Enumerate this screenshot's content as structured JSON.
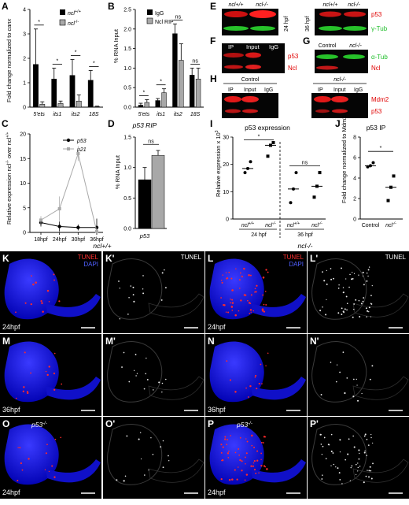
{
  "panels": {
    "A": {
      "label": "A",
      "ylabel_main": "Fold change normalized to ",
      "ylabel_italic": "canx",
      "legend": [
        "ncl",
        "+/+",
        "ncl",
        "-/-"
      ],
      "sig": [
        "*",
        "*",
        "*",
        "*"
      ],
      "chart_data": {
        "type": "bar",
        "categories": [
          "5'ets",
          "its1",
          "its2",
          "18S"
        ],
        "ylim": [
          0,
          4
        ],
        "yticks": [
          "0",
          "1",
          "2",
          "3",
          "4"
        ],
        "series": [
          {
            "name": "ncl+/+",
            "values": [
              1.75,
              1.15,
              1.3,
              1.1
            ],
            "err": [
              1.45,
              0.45,
              0.65,
              0.4
            ]
          },
          {
            "name": "ncl-/-",
            "values": [
              0.12,
              0.15,
              0.25,
              0.02
            ],
            "err": [
              0.1,
              0.1,
              0.25,
              0.02
            ]
          }
        ]
      }
    },
    "B": {
      "label": "B",
      "ylabel": "% RNA Input",
      "legend": [
        "IgG",
        "Ncl RIP"
      ],
      "sig": [
        "*",
        "*",
        "ns",
        "ns"
      ],
      "chart_data": {
        "type": "bar",
        "categories": [
          "5'ets",
          "its1",
          "its2",
          "18S"
        ],
        "ylim": [
          0,
          2.5
        ],
        "yticks": [
          "0.0",
          "0.5",
          "1.0",
          "1.5",
          "2.0",
          "2.5"
        ],
        "series": [
          {
            "name": "IgG",
            "values": [
              0.05,
              0.17,
              1.88,
              0.82
            ],
            "err": [
              0.05,
              0.05,
              0.25,
              0.18
            ]
          },
          {
            "name": "Ncl RIP",
            "values": [
              0.12,
              0.37,
              1.2,
              0.72
            ],
            "err": [
              0.07,
              0.1,
              0.42,
              0.28
            ]
          }
        ]
      }
    },
    "C": {
      "label": "C",
      "ylabel": "Relative expression ncl",
      "ylabel_sup": "-/-",
      "ylabel_mid": " over ncl",
      "ylabel_sup2": "+/+",
      "chart_data": {
        "type": "line",
        "x": [
          "18hpf",
          "24hpf",
          "30hpf",
          "36hpf"
        ],
        "ylim": [
          0,
          20
        ],
        "yticks": [
          "0",
          "5",
          "10",
          "15",
          "20"
        ],
        "series": [
          {
            "name": "p53",
            "values": [
              2.0,
              1.2,
              1.0,
              1.0
            ],
            "err": [
              0.8,
              1.0,
              0.6,
              1.8
            ]
          },
          {
            "name": "p21",
            "values": [
              2.5,
              4.8,
              16.0,
              0.2
            ],
            "err": [
              0.8,
              2.5,
              1.5,
              0.2
            ]
          }
        ]
      }
    },
    "D": {
      "label": "D",
      "title": "p53 RIP",
      "ylabel": "% RNA Input",
      "xlabel": "p53",
      "sig": "ns",
      "chart_data": {
        "type": "bar",
        "categories": [
          "p53"
        ],
        "ylim": [
          0,
          1.5
        ],
        "yticks": [
          "0.0",
          "0.5",
          "1.0",
          "1.5"
        ],
        "series": [
          {
            "name": "IgG",
            "values": [
              0.8
            ],
            "err": [
              0.2
            ]
          },
          {
            "name": "Ncl RIP",
            "values": [
              1.2
            ],
            "err": [
              0.08
            ]
          }
        ]
      }
    },
    "I": {
      "label": "I",
      "title": "p53 expression",
      "ylabel": "Relative expression x 10",
      "ylabel_sup": "3",
      "sig": [
        "*",
        "ns"
      ],
      "group_labels": [
        "24 hpf",
        "36 hpf"
      ],
      "tick_labels": [
        "ncl+/+",
        "ncl-/-",
        "ncl+/+",
        "ncl-/-"
      ],
      "chart_data": {
        "type": "scatter",
        "ylim": [
          0,
          30
        ],
        "yticks": [
          "0",
          "10",
          "20",
          "30"
        ],
        "groups": [
          {
            "name": "24 hpf ncl+/+",
            "points": [
              17,
              18.5,
              21
            ]
          },
          {
            "name": "24 hpf ncl-/-",
            "points": [
              23,
              27,
              28
            ]
          },
          {
            "name": "36 hpf ncl+/+",
            "points": [
              6,
              11,
              17
            ]
          },
          {
            "name": "36 hpf ncl-/-",
            "points": [
              8,
              12,
              17
            ]
          }
        ]
      }
    },
    "J": {
      "label": "J",
      "title": "p53 IP",
      "ylabel": "Fold change normalized to Mdm2",
      "sig": "*",
      "tick_labels": [
        "Control",
        "ncl-/-"
      ],
      "chart_data": {
        "type": "scatter",
        "ylim": [
          0,
          8
        ],
        "yticks": [
          "0",
          "2",
          "4",
          "6",
          "8"
        ],
        "groups": [
          {
            "name": "Control",
            "points": [
              5.1,
              5.2,
              5.5
            ]
          },
          {
            "name": "ncl-/-",
            "points": [
              1.8,
              3.1,
              4.2
            ]
          }
        ]
      }
    },
    "E": {
      "label": "E",
      "cols": [
        "ncl+/+",
        "ncl-/-"
      ],
      "time1": "24 hpf",
      "time2": "36 hpf",
      "bands": [
        "p53",
        "γ-Tub"
      ]
    },
    "F": {
      "label": "F",
      "lanes": [
        "IP",
        "Input",
        "IgG"
      ],
      "bands": [
        "p53",
        "Ncl"
      ]
    },
    "G": {
      "label": "G",
      "lanes": [
        "Control",
        "ncl-/-"
      ],
      "bands": [
        "α-Tub",
        "Ncl"
      ]
    },
    "H": {
      "label": "H",
      "group1": "Control",
      "group2": "ncl-/-",
      "lanes": [
        "IP",
        "Input",
        "IgG"
      ],
      "bands": [
        "Mdm2",
        "p53"
      ]
    },
    "micro": {
      "header_left": "ncl+/+",
      "header_right": "ncl-/-",
      "tiles": [
        {
          "label": "K",
          "stain": "TUNEL",
          "stain2": "DAPI",
          "time": "24hpf"
        },
        {
          "label": "K'",
          "stain": "TUNEL"
        },
        {
          "label": "L",
          "stain": "TUNEL",
          "stain2": "DAPI",
          "time": "24hpf"
        },
        {
          "label": "L'",
          "stain": "TUNEL"
        },
        {
          "label": "M",
          "time": "36hpf"
        },
        {
          "label": "M'"
        },
        {
          "label": "N",
          "time": "36hpf"
        },
        {
          "label": "N'"
        },
        {
          "label": "O",
          "geno": "p53-/-",
          "time": "24hpf"
        },
        {
          "label": "O'"
        },
        {
          "label": "P",
          "geno": "p53-/-",
          "time": "24hpf"
        },
        {
          "label": "P'"
        }
      ]
    }
  }
}
